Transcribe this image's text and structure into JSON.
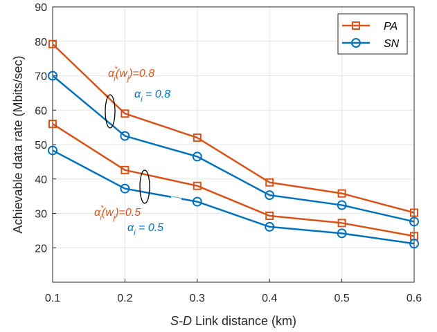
{
  "chart_data": {
    "type": "line",
    "xlabel_prefix": "S-D",
    "xlabel_rest": " Link distance (km)",
    "ylabel": "Achievable data rate (Mbits/sec)",
    "x": [
      0.1,
      0.2,
      0.3,
      0.4,
      0.5,
      0.6
    ],
    "x_ticks": [
      "0.1",
      "0.2",
      "0.3",
      "0.4",
      "0.5",
      "0.6"
    ],
    "y_ticks": [
      "20",
      "30",
      "40",
      "50",
      "60",
      "70",
      "80",
      "90"
    ],
    "xlim": [
      0.1,
      0.6
    ],
    "ylim": [
      10,
      90
    ],
    "grid": true,
    "legend_position": "top-right",
    "legend": [
      {
        "label": "PA",
        "color": "#d95319",
        "marker": "square"
      },
      {
        "label": "SN",
        "color": "#0072bd",
        "marker": "circle"
      }
    ],
    "series": [
      {
        "name": "PA",
        "group": "0.8",
        "color": "#d95319",
        "marker": "square",
        "values": [
          79.2,
          59.0,
          52.0,
          39.0,
          35.8,
          30.2
        ]
      },
      {
        "name": "SN",
        "group": "0.8",
        "color": "#0072bd",
        "marker": "circle",
        "values": [
          70.0,
          52.5,
          46.5,
          35.3,
          32.4,
          27.6
        ]
      },
      {
        "name": "PA",
        "group": "0.5",
        "color": "#d95319",
        "marker": "square",
        "values": [
          56.0,
          42.6,
          38.0,
          29.3,
          27.2,
          23.4
        ]
      },
      {
        "name": "SN",
        "group": "0.5",
        "color": "#0072bd",
        "marker": "circle",
        "values": [
          48.3,
          37.2,
          33.4,
          26.1,
          24.2,
          21.2
        ]
      }
    ],
    "annotations": {
      "pa_08": {
        "alpha": "α",
        "sup": "*",
        "sub": "i",
        "paren_open": "(w",
        "paren_sub": "j",
        "rest": ")=0.8",
        "color": "#d95319"
      },
      "sn_08": {
        "alpha": "α",
        "sub": "i",
        "rest": " = 0.8",
        "color": "#0072bd"
      },
      "pa_05": {
        "alpha": "α",
        "sup": "*",
        "sub": "i",
        "paren_open": "(w",
        "paren_sub": "j",
        "rest": ")=0.5",
        "color": "#d95319"
      },
      "sn_05": {
        "alpha": "α",
        "sub": "i",
        "rest": " = 0.5",
        "color": "#0072bd"
      }
    }
  }
}
